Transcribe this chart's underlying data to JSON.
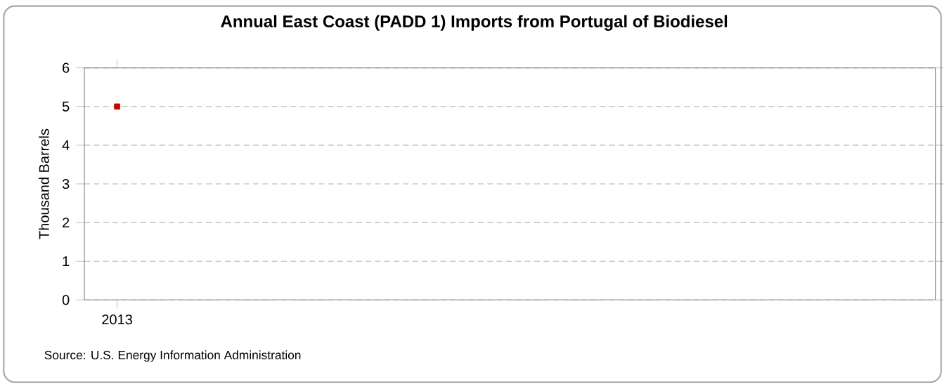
{
  "chart_data": {
    "type": "line",
    "title": "Annual East Coast (PADD 1) Imports from Portugal of Biodiesel",
    "ylabel": "Thousand Barrels",
    "categories": [
      "2013"
    ],
    "series": [
      {
        "color": "#cc0000",
        "values": [
          5
        ]
      }
    ],
    "ylim": [
      0,
      6
    ],
    "yticks": [
      0,
      1,
      2,
      3,
      4,
      5,
      6
    ],
    "grid": "y",
    "marker": "square",
    "annotations": [
      "Source: U.S. Energy Information Administration"
    ]
  }
}
